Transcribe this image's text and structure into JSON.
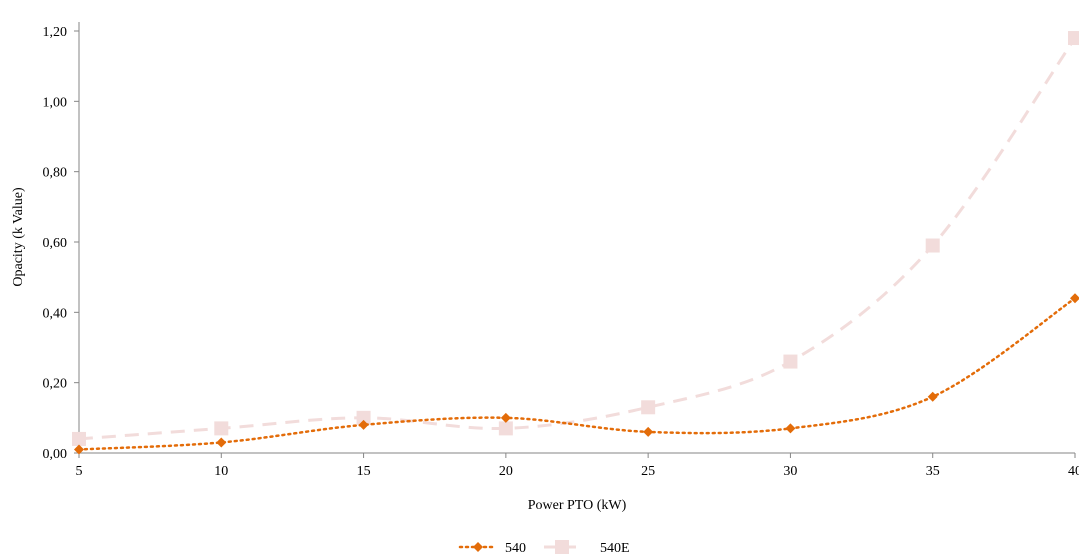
{
  "chart_data": {
    "type": "line",
    "title": "",
    "xlabel": "Power PTO (kW)",
    "ylabel": "Opacity (k Value)",
    "x": [
      5,
      10,
      15,
      20,
      25,
      30,
      35,
      40
    ],
    "x_tick_labels": [
      "5",
      "10",
      "15",
      "20",
      "25",
      "30",
      "35",
      "40"
    ],
    "xlim": [
      5,
      40
    ],
    "ylim": [
      0,
      1.2
    ],
    "y_ticks": [
      0,
      0.2,
      0.4,
      0.6,
      0.8,
      1.0,
      1.2
    ],
    "y_tick_labels": [
      "0,00",
      "0,20",
      "0,40",
      "0,60",
      "0,80",
      "1,00",
      "1,20"
    ],
    "grid": false,
    "legend_position": "bottom",
    "series": [
      {
        "name": "540",
        "values": [
          0.01,
          0.03,
          0.08,
          0.1,
          0.06,
          0.07,
          0.16,
          0.44
        ],
        "color": "#E36C09",
        "marker": "diamond",
        "line_style": "dotted"
      },
      {
        "name": "540E",
        "values": [
          0.04,
          0.07,
          0.1,
          0.07,
          0.13,
          0.26,
          0.59,
          1.18
        ],
        "color": "#F2DCDB",
        "marker": "square",
        "line_style": "dashed"
      }
    ]
  }
}
